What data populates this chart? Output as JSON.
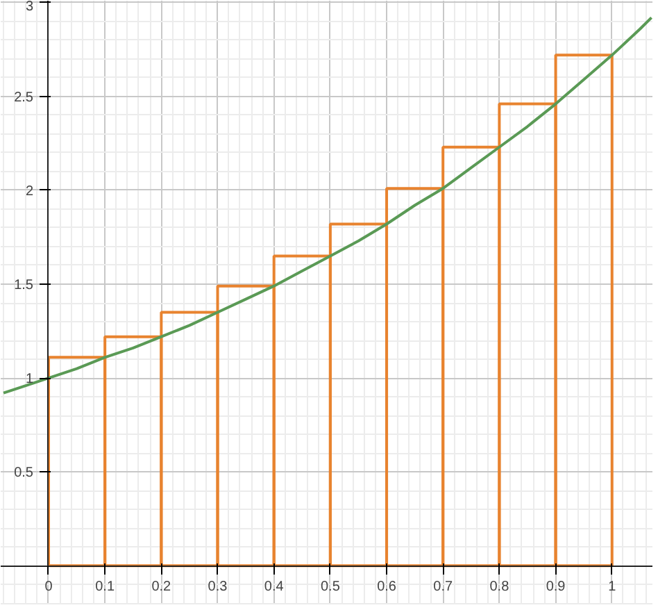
{
  "chart_data": {
    "type": "bar",
    "xlim": [
      -0.085,
      1.073
    ],
    "ylim": [
      -0.21,
      3.01
    ],
    "xticks": [
      0,
      0.1,
      0.2,
      0.3,
      0.4,
      0.5,
      0.6,
      0.7,
      0.8,
      0.9,
      1
    ],
    "yticks": [
      0.5,
      1,
      1.5,
      2,
      2.5,
      3
    ],
    "grid": true,
    "series": [
      {
        "color": "#e8832f",
        "x": [
          0.05,
          0.15,
          0.25,
          0.35,
          0.45,
          0.55,
          0.65,
          0.75,
          0.85,
          0.95
        ],
        "values": [
          1.11,
          1.22,
          1.35,
          1.49,
          1.65,
          1.82,
          2.01,
          2.23,
          2.46,
          2.72
        ]
      },
      {
        "type": "line",
        "color": "#5a9a55",
        "x": [
          -0.08,
          -0.05,
          0,
          0.05,
          0.1,
          0.15,
          0.2,
          0.25,
          0.3,
          0.35,
          0.4,
          0.45,
          0.5,
          0.55,
          0.6,
          0.65,
          0.7,
          0.75,
          0.8,
          0.85,
          0.9,
          0.95,
          1,
          1.05,
          1.07
        ],
        "values": [
          0.92,
          0.95,
          1,
          1.05,
          1.11,
          1.16,
          1.22,
          1.28,
          1.35,
          1.42,
          1.49,
          1.57,
          1.65,
          1.73,
          1.82,
          1.92,
          2.01,
          2.12,
          2.23,
          2.34,
          2.46,
          2.59,
          2.72,
          2.86,
          2.92
        ]
      }
    ]
  }
}
